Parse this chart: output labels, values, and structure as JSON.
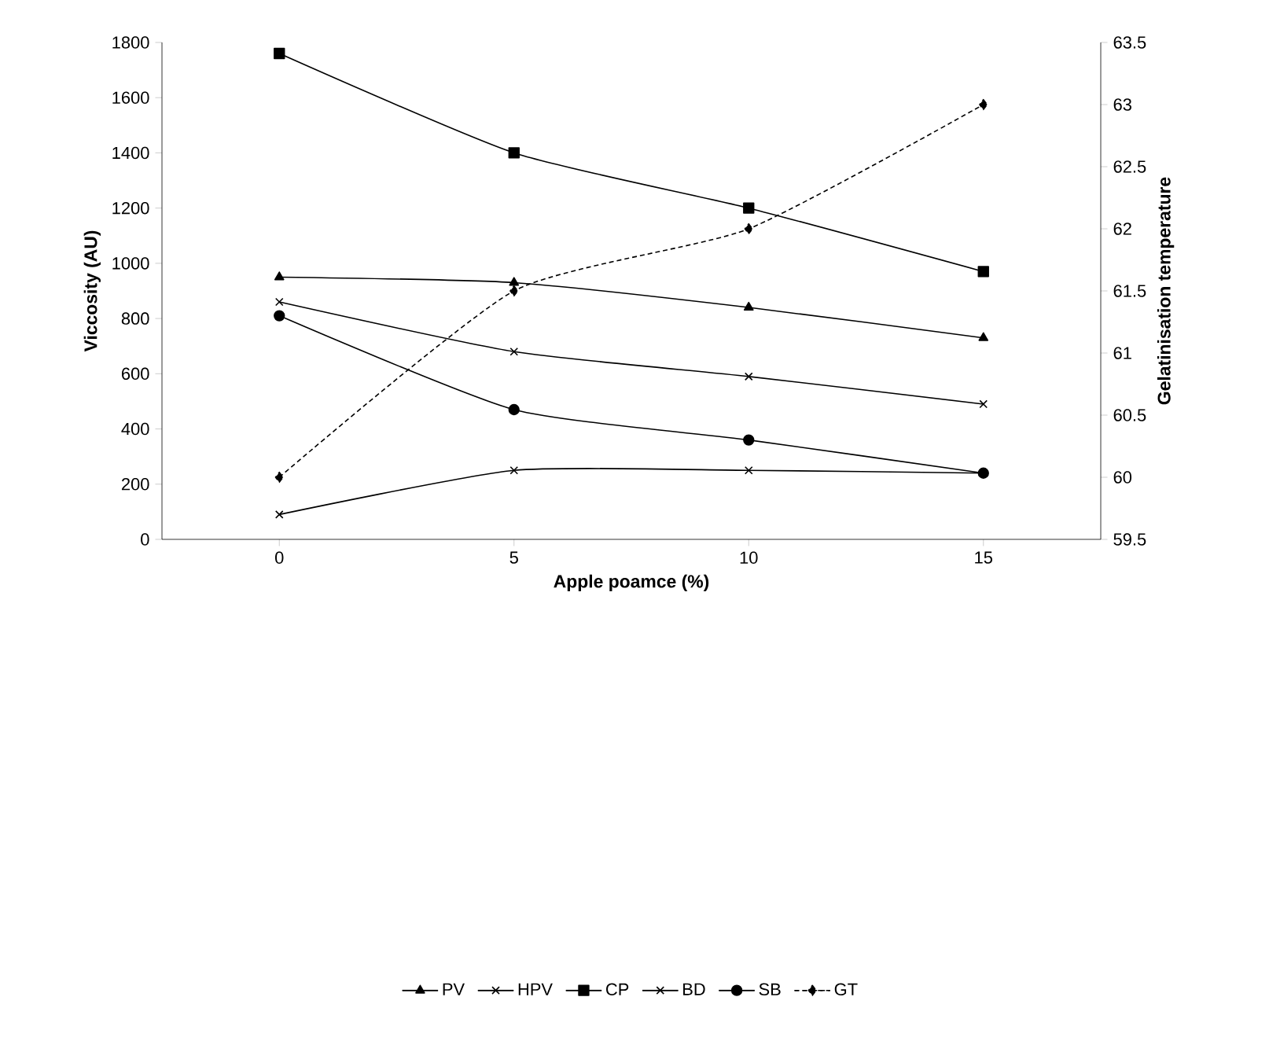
{
  "chart_data": {
    "type": "line",
    "xlabel": "Apple poamce (%)",
    "ylabel": "Viccosity (AU)",
    "y2label": "Gelatinisation temperature",
    "categories": [
      "0",
      "5",
      "10",
      "15"
    ],
    "series": [
      {
        "name": "PV",
        "color": "#000000",
        "marker": "triangle",
        "line_style": "solid",
        "values": [
          950,
          930,
          840,
          730
        ]
      },
      {
        "name": "HPV",
        "color": "#000000",
        "marker": "cross",
        "line_style": "solid",
        "values": [
          860,
          680,
          590,
          490
        ]
      },
      {
        "name": "CP",
        "color": "#000000",
        "marker": "square",
        "line_style": "solid",
        "values": [
          1760,
          1400,
          1200,
          970
        ]
      },
      {
        "name": "BD",
        "color": "#000000",
        "marker": "cross",
        "line_style": "solid",
        "values": [
          90,
          250,
          250,
          240
        ]
      },
      {
        "name": "SB",
        "color": "#000000",
        "marker": "circle",
        "line_style": "solid",
        "values": [
          810,
          470,
          360,
          240
        ]
      },
      {
        "name": "GT",
        "color": "#000000",
        "marker": "diamond",
        "line_style": "dashed",
        "axis": "y2",
        "values": [
          60,
          61.5,
          62,
          63
        ]
      }
    ],
    "ylim": [
      0,
      1800
    ],
    "yticks": [
      0,
      200,
      400,
      600,
      800,
      1000,
      1200,
      1400,
      1600,
      1800
    ],
    "y2lim": [
      59.5,
      63.5
    ],
    "y2ticks": [
      59.5,
      60,
      60.5,
      61,
      61.5,
      62,
      62.5,
      63,
      63.5
    ],
    "legend": "bottom",
    "grid": false
  }
}
